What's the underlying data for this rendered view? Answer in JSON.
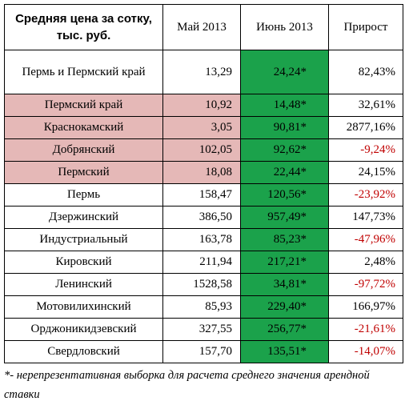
{
  "table": {
    "headers": {
      "name": "Средняя цена за сотку, тыс. руб.",
      "may": "Май 2013",
      "june": "Июнь 2013",
      "growth": "Прирост"
    },
    "rows": [
      {
        "name": "Пермь и Пермский край",
        "may": "13,29",
        "june": "24,24*",
        "growth": "82,43%",
        "highlight": "none",
        "growth_sign": "positive"
      },
      {
        "name": "Пермский край",
        "may": "10,92",
        "june": "14,48*",
        "growth": "32,61%",
        "highlight": "pink",
        "growth_sign": "positive"
      },
      {
        "name": "Краснокамский",
        "may": "3,05",
        "june": "90,81*",
        "growth": "2877,16%",
        "highlight": "pink",
        "growth_sign": "positive"
      },
      {
        "name": "Добрянский",
        "may": "102,05",
        "june": "92,62*",
        "growth": "-9,24%",
        "highlight": "pink",
        "growth_sign": "negative"
      },
      {
        "name": "Пермский",
        "may": "18,08",
        "june": "22,44*",
        "growth": "24,15%",
        "highlight": "pink",
        "growth_sign": "positive"
      },
      {
        "name": "Пермь",
        "may": "158,47",
        "june": "120,56*",
        "growth": "-23,92%",
        "highlight": "none",
        "growth_sign": "negative"
      },
      {
        "name": "Дзержинский",
        "may": "386,50",
        "june": "957,49*",
        "growth": "147,73%",
        "highlight": "none",
        "growth_sign": "positive"
      },
      {
        "name": "Индустриальный",
        "may": "163,78",
        "june": "85,23*",
        "growth": "-47,96%",
        "highlight": "none",
        "growth_sign": "negative"
      },
      {
        "name": "Кировский",
        "may": "211,94",
        "june": "217,21*",
        "growth": "2,48%",
        "highlight": "none",
        "growth_sign": "positive"
      },
      {
        "name": "Ленинский",
        "may": "1528,58",
        "june": "34,81*",
        "growth": "-97,72%",
        "highlight": "none",
        "growth_sign": "negative"
      },
      {
        "name": "Мотовилихинский",
        "may": "85,93",
        "june": "229,40*",
        "growth": "166,97%",
        "highlight": "none",
        "growth_sign": "positive"
      },
      {
        "name": "Орджоникидзевский",
        "may": "327,55",
        "june": "256,77*",
        "growth": "-21,61%",
        "highlight": "none",
        "growth_sign": "negative"
      },
      {
        "name": "Свердловский",
        "may": "157,70",
        "june": "135,51*",
        "growth": "-14,07%",
        "highlight": "none",
        "growth_sign": "negative"
      }
    ]
  },
  "footnote": "*- нерепрезентативная выборка для расчета среднего значения арендной ставки",
  "colors": {
    "june_column": "#1ba24b",
    "highlight_pink": "#e5b8b7",
    "negative_text": "#c00000"
  }
}
